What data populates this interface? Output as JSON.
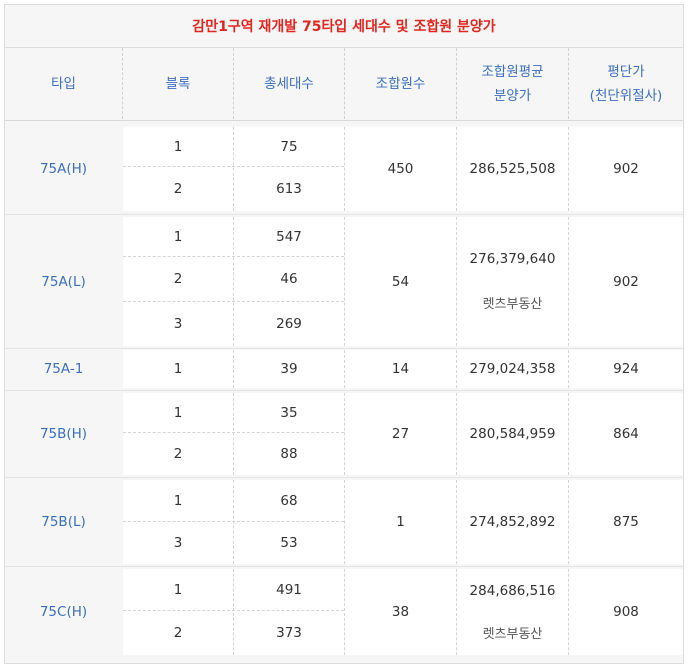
{
  "title": "감만1구역 재개발 75타입 세대수 및 조합원 분양가",
  "headers": {
    "type": "타입",
    "block": "블록",
    "households": "총세대수",
    "members": "조합원수",
    "avg_price_line1": "조합원평균",
    "avg_price_line2": "분양가",
    "pyeong_line1": "평단가",
    "pyeong_line2": "(천단위절사)"
  },
  "rows": [
    {
      "type": "75A(H)",
      "blocks": [
        {
          "block": "1",
          "households": "75"
        },
        {
          "block": "2",
          "households": "613"
        }
      ],
      "members": "450",
      "avg_price": "286,525,508",
      "note": "",
      "pyeong": "902"
    },
    {
      "type": "75A(L)",
      "blocks": [
        {
          "block": "1",
          "households": "547"
        },
        {
          "block": "2",
          "households": "46"
        },
        {
          "block": "3",
          "households": "269"
        }
      ],
      "members": "54",
      "avg_price": "276,379,640",
      "note": "렛츠부동산",
      "pyeong": "902"
    },
    {
      "type": "75A-1",
      "blocks": [
        {
          "block": "1",
          "households": "39"
        }
      ],
      "members": "14",
      "avg_price": "279,024,358",
      "note": "",
      "pyeong": "924"
    },
    {
      "type": "75B(H)",
      "blocks": [
        {
          "block": "1",
          "households": "35"
        },
        {
          "block": "2",
          "households": "88"
        }
      ],
      "members": "27",
      "avg_price": "280,584,959",
      "note": "",
      "pyeong": "864"
    },
    {
      "type": "75B(L)",
      "blocks": [
        {
          "block": "1",
          "households": "68"
        },
        {
          "block": "3",
          "households": "53"
        }
      ],
      "members": "1",
      "avg_price": "274,852,892",
      "note": "",
      "pyeong": "875"
    },
    {
      "type": "75C(H)",
      "blocks": [
        {
          "block": "1",
          "households": "491"
        },
        {
          "block": "2",
          "households": "373"
        }
      ],
      "members": "38",
      "avg_price": "284,686,516",
      "note": "렛츠부동산",
      "pyeong": "908"
    }
  ]
}
